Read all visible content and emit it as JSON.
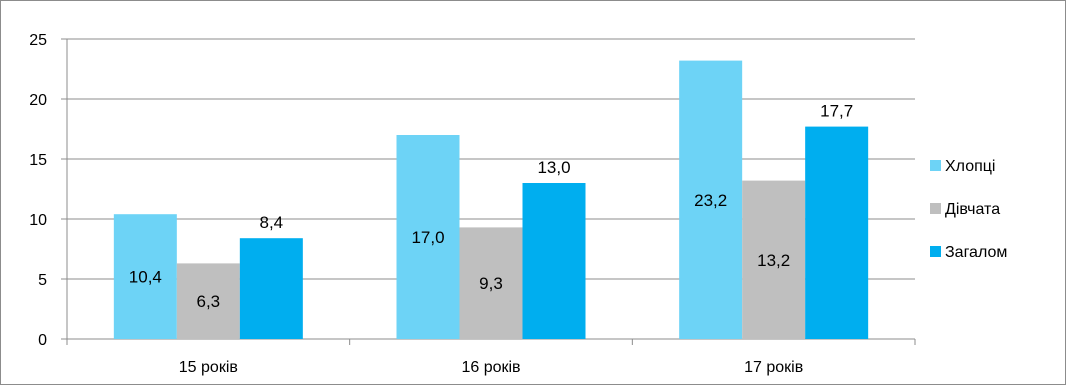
{
  "chart_data": {
    "type": "bar",
    "title": "",
    "xlabel": "",
    "ylabel": "",
    "categories": [
      "15 років",
      "16 років",
      "17 років"
    ],
    "ylim": [
      0,
      25
    ],
    "yticks": [
      "0",
      "5",
      "10",
      "15",
      "20",
      "25"
    ],
    "grid": true,
    "legend_position": "right",
    "series": [
      {
        "name": "Хлопці",
        "color": "#6dd3f6",
        "values": [
          10.4,
          17.0,
          23.2
        ],
        "labels": [
          "10,4",
          "17,0",
          "23,2"
        ],
        "label_position": "inside"
      },
      {
        "name": "Дівчата",
        "color": "#bfbfbf",
        "values": [
          6.3,
          9.3,
          13.2
        ],
        "labels": [
          "6,3",
          "9,3",
          "13,2"
        ],
        "label_position": "inside"
      },
      {
        "name": "Загалом",
        "color": "#00aeef",
        "values": [
          8.4,
          13.0,
          17.7
        ],
        "labels": [
          "8,4",
          "13,0",
          "17,7"
        ],
        "label_position": "above"
      }
    ]
  }
}
